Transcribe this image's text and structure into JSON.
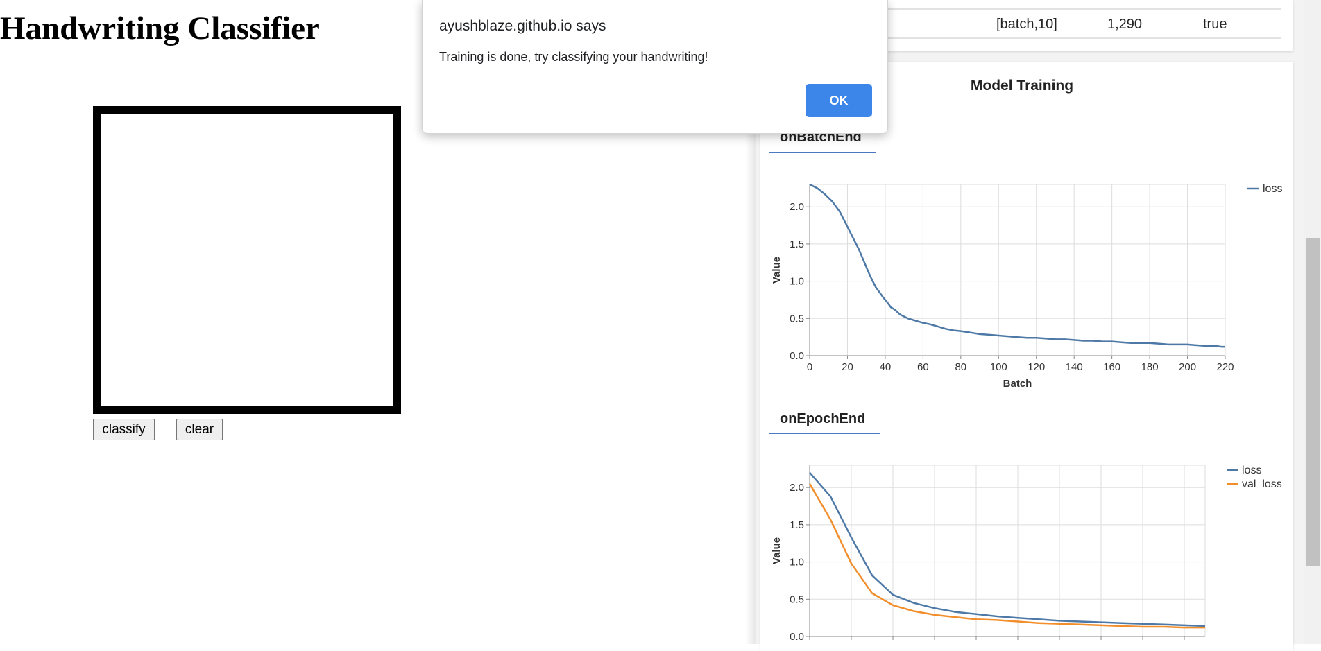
{
  "page": {
    "title": "Handwriting Classifier",
    "classify_label": "classify",
    "clear_label": "clear"
  },
  "alert": {
    "origin": "ayushblaze.github.io says",
    "message": "Training is done, try classifying your handwriting!",
    "ok_label": "OK"
  },
  "model_table": {
    "last_row": [
      "[batch,10]",
      "1,290",
      "true"
    ]
  },
  "training": {
    "section_title": "Model Training",
    "batch_title": "onBatchEnd",
    "epoch_title": "onEpochEnd"
  },
  "colors": {
    "loss": "#4e79a7",
    "val_loss": "#f28e2b",
    "ok_button": "#3b86e8"
  },
  "chart_data": [
    {
      "type": "line",
      "xlabel": "Batch",
      "ylabel": "Value",
      "xlim": [
        0,
        220
      ],
      "ylim": [
        0,
        2.3
      ],
      "xticks": [
        0,
        20,
        40,
        60,
        80,
        100,
        120,
        140,
        160,
        180,
        200,
        220
      ],
      "yticks": [
        0.0,
        0.5,
        1.0,
        1.5,
        2.0
      ],
      "legend_position": "top-right",
      "grid": true,
      "series": [
        {
          "name": "loss",
          "x": [
            0,
            4,
            8,
            12,
            16,
            20,
            23,
            26,
            29,
            31,
            33,
            35,
            37,
            39,
            41,
            43,
            45,
            48,
            52,
            56,
            60,
            64,
            68,
            72,
            76,
            80,
            85,
            90,
            95,
            100,
            105,
            110,
            115,
            120,
            125,
            130,
            135,
            140,
            145,
            150,
            155,
            160,
            165,
            170,
            175,
            180,
            185,
            190,
            195,
            200,
            205,
            210,
            215,
            218,
            220
          ],
          "values": [
            2.3,
            2.25,
            2.17,
            2.07,
            1.93,
            1.73,
            1.58,
            1.43,
            1.25,
            1.13,
            1.02,
            0.92,
            0.85,
            0.78,
            0.72,
            0.65,
            0.62,
            0.55,
            0.5,
            0.47,
            0.44,
            0.42,
            0.39,
            0.36,
            0.34,
            0.33,
            0.31,
            0.29,
            0.28,
            0.27,
            0.26,
            0.25,
            0.24,
            0.24,
            0.23,
            0.22,
            0.22,
            0.21,
            0.2,
            0.2,
            0.19,
            0.19,
            0.18,
            0.17,
            0.17,
            0.17,
            0.16,
            0.15,
            0.15,
            0.15,
            0.14,
            0.13,
            0.13,
            0.12,
            0.12
          ]
        }
      ]
    },
    {
      "type": "line",
      "xlabel": "",
      "ylabel": "Value",
      "ylim": [
        0,
        2.3
      ],
      "yticks": [
        0.0,
        0.5,
        1.0,
        1.5,
        2.0
      ],
      "legend_position": "top-right",
      "grid": true,
      "series": [
        {
          "name": "loss",
          "x": [
            0,
            1,
            2,
            3,
            4,
            5,
            6,
            7,
            8,
            9,
            10,
            11,
            12,
            13,
            14,
            15,
            16,
            17,
            18,
            19
          ],
          "values": [
            2.2,
            1.88,
            1.33,
            0.82,
            0.56,
            0.45,
            0.38,
            0.33,
            0.3,
            0.27,
            0.25,
            0.23,
            0.21,
            0.2,
            0.19,
            0.18,
            0.17,
            0.16,
            0.15,
            0.14
          ]
        },
        {
          "name": "val_loss",
          "x": [
            0,
            1,
            2,
            3,
            4,
            5,
            6,
            7,
            8,
            9,
            10,
            11,
            12,
            13,
            14,
            15,
            16,
            17,
            18,
            19
          ],
          "values": [
            2.05,
            1.57,
            0.98,
            0.58,
            0.42,
            0.34,
            0.29,
            0.26,
            0.23,
            0.22,
            0.2,
            0.18,
            0.17,
            0.16,
            0.15,
            0.14,
            0.13,
            0.13,
            0.12,
            0.12
          ]
        }
      ]
    }
  ]
}
